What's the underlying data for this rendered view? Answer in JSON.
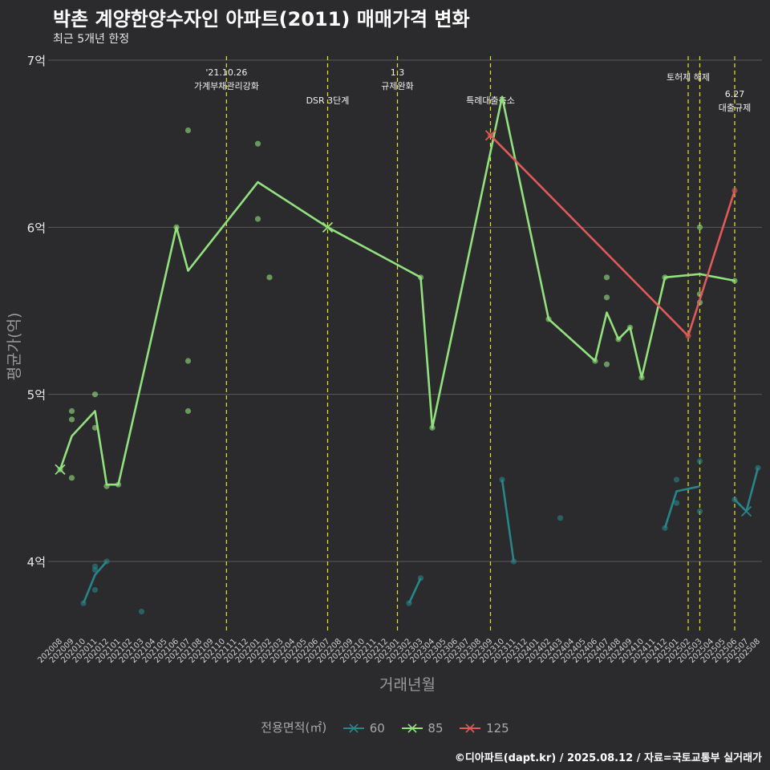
{
  "header": {
    "title": "박촌 계양한양수자인 아파트(2011) 매매가격 변화",
    "subtitle": "최근 5개년 한정"
  },
  "caption": "©디아파트(dapt.kr) / 2025.08.12 / 자료=국토교통부 실거래가",
  "colors": {
    "s60": "#26868a",
    "s85": "#93e07e",
    "s125": "#e05a5a",
    "vline": "#e6e619",
    "grid": "#5a5a5a"
  },
  "chart_data": {
    "type": "line",
    "xlabel": "거래년월",
    "ylabel": "평균가(억)",
    "ylim": [
      3.55,
      7.05
    ],
    "y_ticks": [
      4,
      5,
      6,
      7
    ],
    "y_tick_labels": [
      "4억",
      "5억",
      "6억",
      "7억"
    ],
    "categories": [
      "202008",
      "202009",
      "202010",
      "202011",
      "202012",
      "202101",
      "202102",
      "202103",
      "202104",
      "202105",
      "202106",
      "202107",
      "202108",
      "202109",
      "202110",
      "202111",
      "202112",
      "202201",
      "202202",
      "202203",
      "202204",
      "202205",
      "202206",
      "202207",
      "202208",
      "202209",
      "202210",
      "202211",
      "202212",
      "202301",
      "202302",
      "202303",
      "202304",
      "202305",
      "202306",
      "202307",
      "202308",
      "202309",
      "202310",
      "202311",
      "202312",
      "202401",
      "202402",
      "202403",
      "202404",
      "202405",
      "202406",
      "202407",
      "202408",
      "202409",
      "202410",
      "202411",
      "202412",
      "202501",
      "202502",
      "202503",
      "202504",
      "202505",
      "202506",
      "202507",
      "202508"
    ],
    "legend_title": "전용면적(㎡)",
    "series": [
      {
        "name": "60",
        "color_key": "s60",
        "segments": [
          [
            [
              2,
              3.75
            ],
            [
              3,
              3.92
            ],
            [
              4,
              4.0
            ]
          ],
          [
            [
              30,
              3.75
            ],
            [
              31,
              3.9
            ]
          ],
          [
            [
              38,
              4.49
            ],
            [
              39,
              4.0
            ]
          ],
          [
            [
              52,
              4.2
            ],
            [
              53,
              4.42
            ],
            [
              55,
              4.45
            ]
          ],
          [
            [
              58,
              4.37
            ],
            [
              59,
              4.3
            ],
            [
              60,
              4.56
            ]
          ]
        ],
        "last_mark": [
          59,
          4.3
        ],
        "points": [
          [
            2,
            3.75
          ],
          [
            3,
            3.97
          ],
          [
            3,
            3.95
          ],
          [
            3,
            3.83
          ],
          [
            4,
            4.0
          ],
          [
            7,
            3.7
          ],
          [
            30,
            3.75
          ],
          [
            31,
            3.9
          ],
          [
            38,
            4.49
          ],
          [
            39,
            4.0
          ],
          [
            43,
            4.26
          ],
          [
            52,
            4.2
          ],
          [
            53,
            4.49
          ],
          [
            53,
            4.35
          ],
          [
            55,
            4.6
          ],
          [
            55,
            4.3
          ],
          [
            58,
            4.37
          ],
          [
            60,
            4.56
          ]
        ]
      },
      {
        "name": "85",
        "color_key": "s85",
        "segments": [
          [
            [
              0,
              4.55
            ],
            [
              1,
              4.75
            ],
            [
              3,
              4.9
            ],
            [
              4,
              4.46
            ],
            [
              5,
              4.46
            ],
            [
              10,
              6.0
            ],
            [
              11,
              5.74
            ],
            [
              17,
              6.27
            ],
            [
              23,
              6.0
            ],
            [
              31,
              5.7
            ],
            [
              32,
              4.8
            ],
            [
              38,
              6.78
            ],
            [
              42,
              5.45
            ],
            [
              46,
              5.2
            ],
            [
              47,
              5.49
            ],
            [
              48,
              5.33
            ],
            [
              49,
              5.4
            ],
            [
              50,
              5.1
            ],
            [
              52,
              5.7
            ],
            [
              55,
              5.72
            ],
            [
              58,
              5.68
            ]
          ]
        ],
        "first_mark": [
          0,
          4.55
        ],
        "x_mark": [
          23,
          6.0
        ],
        "points": [
          [
            0,
            4.55
          ],
          [
            1,
            4.9
          ],
          [
            1,
            4.85
          ],
          [
            1,
            4.5
          ],
          [
            3,
            5.0
          ],
          [
            3,
            4.8
          ],
          [
            4,
            4.45
          ],
          [
            5,
            4.46
          ],
          [
            10,
            6.0
          ],
          [
            11,
            6.58
          ],
          [
            11,
            5.2
          ],
          [
            11,
            4.9
          ],
          [
            17,
            6.5
          ],
          [
            17,
            6.05
          ],
          [
            18,
            5.7
          ],
          [
            31,
            5.7
          ],
          [
            32,
            4.8
          ],
          [
            38,
            6.76
          ],
          [
            42,
            5.45
          ],
          [
            46,
            5.2
          ],
          [
            47,
            5.7
          ],
          [
            47,
            5.58
          ],
          [
            47,
            5.18
          ],
          [
            48,
            5.33
          ],
          [
            49,
            5.4
          ],
          [
            50,
            5.1
          ],
          [
            52,
            5.7
          ],
          [
            55,
            6.0
          ],
          [
            55,
            5.6
          ],
          [
            55,
            5.55
          ],
          [
            58,
            5.68
          ]
        ]
      },
      {
        "name": "125",
        "color_key": "s125",
        "segments": [
          [
            [
              37,
              6.55
            ],
            [
              54,
              5.35
            ],
            [
              58,
              6.22
            ]
          ]
        ],
        "first_mark": [
          37,
          6.55
        ],
        "points": [
          [
            37,
            6.55
          ],
          [
            54,
            5.35
          ],
          [
            58,
            6.22
          ]
        ]
      }
    ],
    "vlines": [
      {
        "x": 14.3,
        "label_lines": [
          "'21.10.26",
          "가계부채관리강화"
        ],
        "y": 6.91
      },
      {
        "x": 23.0,
        "label_lines": [
          "DSR 3단계"
        ],
        "y": 6.74
      },
      {
        "x": 29.0,
        "label_lines": [
          "1.3",
          "규제완화"
        ],
        "y": 6.91
      },
      {
        "x": 37.0,
        "label_lines": [
          "특례대출축소"
        ],
        "y": 6.74
      },
      {
        "x": 54.0,
        "label_lines": [
          "토허제 해제"
        ],
        "y": 6.88
      },
      {
        "x": 55.0,
        "label_lines": [],
        "y": 6.9
      },
      {
        "x": 58.0,
        "label_lines": [
          "6.27",
          "대출규제"
        ],
        "y": 6.78
      }
    ]
  }
}
